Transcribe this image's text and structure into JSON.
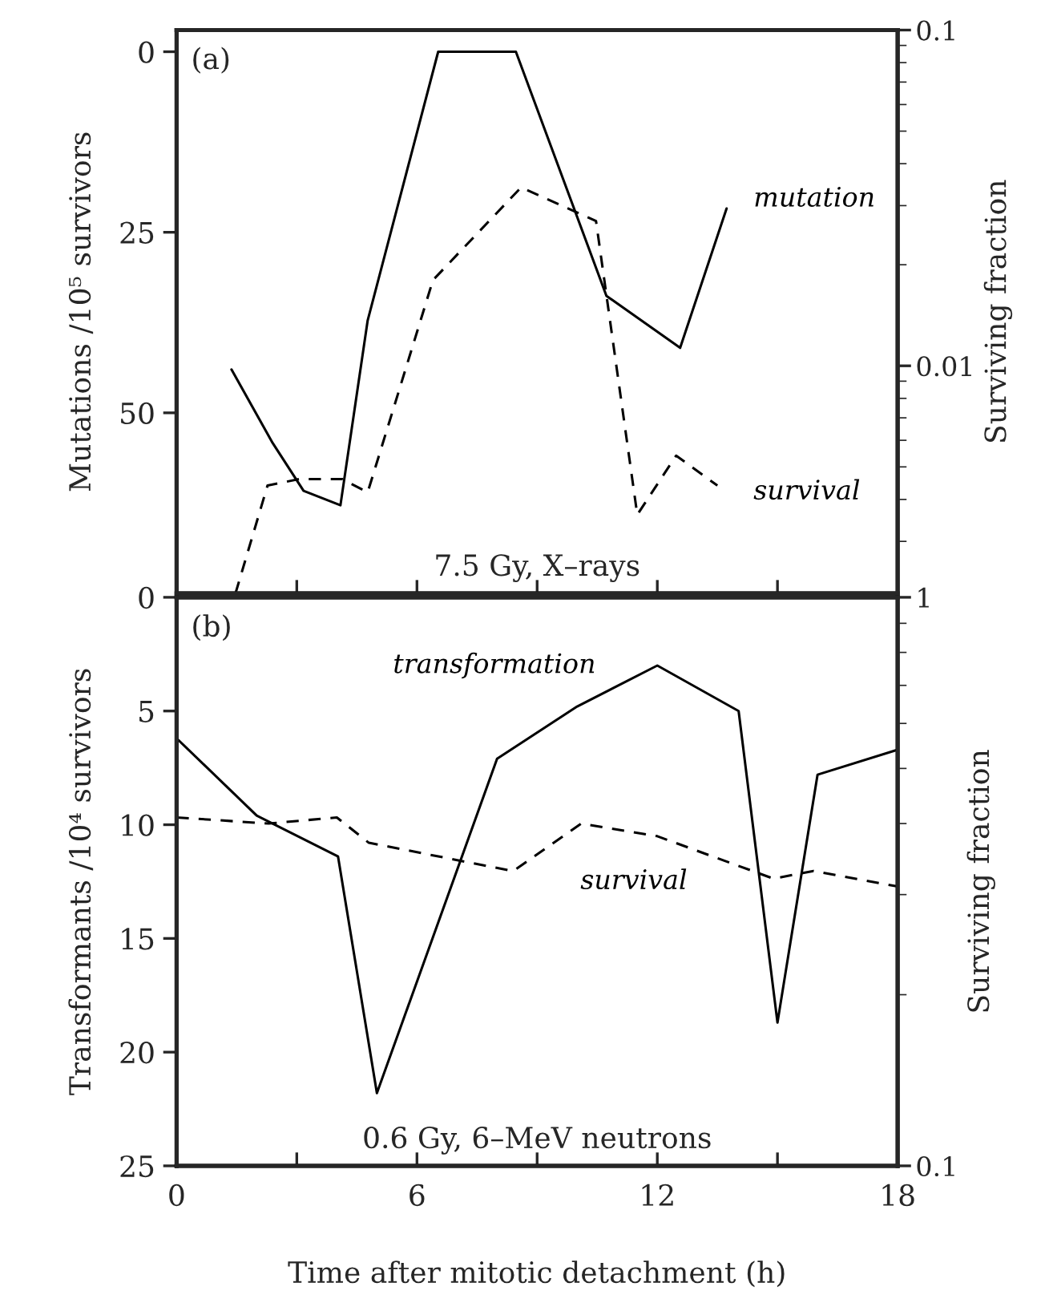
{
  "chart_data": [
    {
      "type": "line",
      "annotations": [
        "(a)",
        "7.5 Gy, X–rays"
      ],
      "ylabel": "Mutations /10⁵ survivors",
      "y2label": "Surviving fraction",
      "xlim": [
        0,
        18
      ],
      "xticks": [
        0,
        {
          "value": 3,
          "label": null
        },
        6,
        {
          "value": 9,
          "label": null
        },
        12,
        {
          "value": 15,
          "label": null
        },
        18
      ],
      "ylim": [
        75,
        -3
      ],
      "yticks": [
        0,
        25,
        50
      ],
      "y2lim": [
        0.0021,
        0.1
      ],
      "y2ticks": [
        0.1,
        0.01
      ],
      "log": "y2",
      "tick_labels": "y",
      "grid": false,
      "legend": false,
      "series": [
        {
          "name": "mutation",
          "color": "#000000",
          "line_style": "solid",
          "x": [
            1.37,
            2.4,
            3.17,
            4.09,
            4.77,
            6.53,
            8.47,
            10.73,
            12.57,
            13.73
          ],
          "values": [
            44,
            54.2,
            60.8,
            62.8,
            37.2,
            0,
            0,
            33.8,
            41,
            21.7
          ]
        },
        {
          "name": "survival",
          "color": "#000000",
          "line_style": "dashed",
          "axis": "y2",
          "x": [
            1.47,
            2.27,
            3.07,
            4.13,
            4.77,
            6.4,
            8.6,
            10.47,
            11.5,
            12.47,
            13.5
          ],
          "values": [
            0.0021,
            0.0044,
            0.0046,
            0.0046,
            0.0042,
            0.018,
            0.034,
            0.027,
            0.0036,
            0.0054,
            0.0044
          ]
        }
      ]
    },
    {
      "type": "line",
      "annotations": [
        "(b)",
        "0.6 Gy, 6–MeV neutrons"
      ],
      "xlabel": "Time after mitotic detachment (h)",
      "ylabel": "Transformants /10⁴ survivors",
      "y2label": "Surviving fraction",
      "xlim": [
        0,
        18
      ],
      "xticks": [
        0,
        {
          "value": 3,
          "label": null
        },
        6,
        {
          "value": 9,
          "label": null
        },
        12,
        {
          "value": 15,
          "label": null
        },
        18
      ],
      "ylim": [
        25,
        0
      ],
      "yticks": [
        0,
        5,
        10,
        15,
        20,
        25
      ],
      "y2lim": [
        0.1,
        1
      ],
      "y2ticks": [
        0.1,
        1
      ],
      "log": "y2",
      "grid": false,
      "legend": false,
      "series": [
        {
          "name": "transformation",
          "color": "#000000",
          "line_style": "solid",
          "x": [
            0,
            2.0,
            4.03,
            5.0,
            8.0,
            10.0,
            12.0,
            14.03,
            15.0,
            16.0,
            18.0
          ],
          "values": [
            6.2,
            9.6,
            11.4,
            21.8,
            7.1,
            4.8,
            3.0,
            5.0,
            18.7,
            7.8,
            6.7
          ]
        },
        {
          "name": "survival",
          "color": "#000000",
          "line_style": "dashed",
          "axis": "y2",
          "x": [
            0,
            2.3,
            4.0,
            4.8,
            8.4,
            10.1,
            12.0,
            14.9,
            15.9,
            18.0
          ],
          "values": [
            0.41,
            0.4,
            0.41,
            0.37,
            0.33,
            0.4,
            0.38,
            0.32,
            0.33,
            0.31
          ]
        }
      ]
    }
  ]
}
